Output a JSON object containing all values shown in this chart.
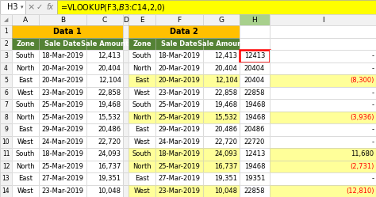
{
  "formula_bar_text": "=VLOOKUP(F3,$B$3:$C$14,2,0)",
  "cell_ref": "H3",
  "data1_header": "Data 1",
  "data2_header": "Data 2",
  "col_labels_data1": [
    "Zone",
    "Sale Date",
    "Sale Amount"
  ],
  "col_labels_data2": [
    "Zone",
    "Sale Date",
    "Sale Amount"
  ],
  "data1": [
    [
      "South",
      "18-Mar-2019",
      "12,413"
    ],
    [
      "North",
      "20-Mar-2019",
      "20,404"
    ],
    [
      "East",
      "20-Mar-2019",
      "12,104"
    ],
    [
      "West",
      "23-Mar-2019",
      "22,858"
    ],
    [
      "South",
      "25-Mar-2019",
      "19,468"
    ],
    [
      "North",
      "25-Mar-2019",
      "15,532"
    ],
    [
      "East",
      "29-Mar-2019",
      "20,486"
    ],
    [
      "West",
      "24-Mar-2019",
      "22,720"
    ],
    [
      "South",
      "18-Mar-2019",
      "24,093"
    ],
    [
      "North",
      "25-Mar-2019",
      "16,737"
    ],
    [
      "East",
      "27-Mar-2019",
      "19,351"
    ],
    [
      "West",
      "23-Mar-2019",
      "10,048"
    ]
  ],
  "data2": [
    [
      "South",
      "18-Mar-2019",
      "12,413"
    ],
    [
      "North",
      "20-Mar-2019",
      "20,404"
    ],
    [
      "East",
      "20-Mar-2019",
      "12,104"
    ],
    [
      "West",
      "23-Mar-2019",
      "22,858"
    ],
    [
      "South",
      "25-Mar-2019",
      "19,468"
    ],
    [
      "North",
      "25-Mar-2019",
      "15,532"
    ],
    [
      "East",
      "29-Mar-2019",
      "20,486"
    ],
    [
      "West",
      "24-Mar-2019",
      "22,720"
    ],
    [
      "South",
      "18-Mar-2019",
      "24,093"
    ],
    [
      "North",
      "25-Mar-2019",
      "16,737"
    ],
    [
      "East",
      "27-Mar-2019",
      "19,351"
    ],
    [
      "West",
      "23-Mar-2019",
      "10,048"
    ]
  ],
  "col_h": [
    "12413",
    "20404",
    "20404",
    "22858",
    "19468",
    "19468",
    "20486",
    "22720",
    "12413",
    "19468",
    "19351",
    "22858"
  ],
  "col_i": [
    "-",
    "-",
    "(8,300)",
    "-",
    "-",
    "(3,936)",
    "-",
    "-",
    "11,680",
    "(2,731)",
    "-",
    "(12,810)"
  ],
  "yellow_rows_data2": [
    2,
    5,
    8,
    9,
    11
  ],
  "header_bg": "#FFC000",
  "col_label_bg": "#548235",
  "col_label_fg": "#FFFFFF",
  "yellow_bg": "#FFFF99",
  "white_bg": "#FFFFFF",
  "grid_color": "#C0C0C0",
  "formula_bg": "#FFFF00",
  "h3_border_color": "#FF0000",
  "row_num_bg": "#F2F2F2",
  "col_hdr_bg": "#F2F2F2",
  "col_hdr_selected": "#A8D08D",
  "divider_bg": "#F2F2F2"
}
